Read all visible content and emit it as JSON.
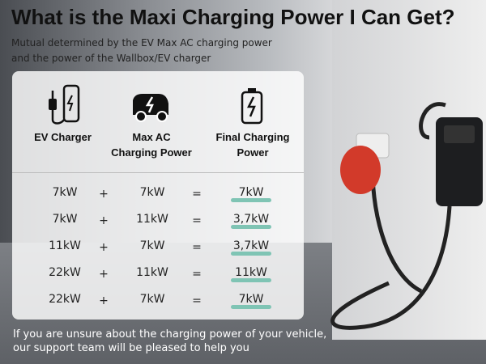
{
  "title": "What is the Maxi Charging Power I Can Get?",
  "subtitle": [
    "Mutual determined by the EV Max AC charging power",
    "and the power of the Wallbox/EV charger"
  ],
  "columns": [
    {
      "label": "EV Charger",
      "icon": "ev-charger-cable-icon"
    },
    {
      "label": "Max AC\nCharging Power",
      "icon": "car-lightning-icon"
    },
    {
      "label": "Final Charging\nPower",
      "icon": "battery-charging-icon"
    }
  ],
  "rows": [
    {
      "charger": "7kW",
      "op1": "+",
      "ac": "7kW",
      "op2": "=",
      "result": "7kW"
    },
    {
      "charger": "7kW",
      "op1": "+",
      "ac": "11kW",
      "op2": "=",
      "result": "3,7kW"
    },
    {
      "charger": "11kW",
      "op1": "+",
      "ac": "7kW",
      "op2": "=",
      "result": "3,7kW"
    },
    {
      "charger": "22kW",
      "op1": "+",
      "ac": "11kW",
      "op2": "=",
      "result": "11kW"
    },
    {
      "charger": "22kW",
      "op1": "+",
      "ac": "7kW",
      "op2": "=",
      "result": "7kW"
    }
  ],
  "footer": [
    "If you are unsure about the charging power of your vehicle,",
    "our support team will be pleased to help you"
  ],
  "colors": {
    "highlight": "#7fc4b4",
    "plug": "#d23a2a"
  }
}
